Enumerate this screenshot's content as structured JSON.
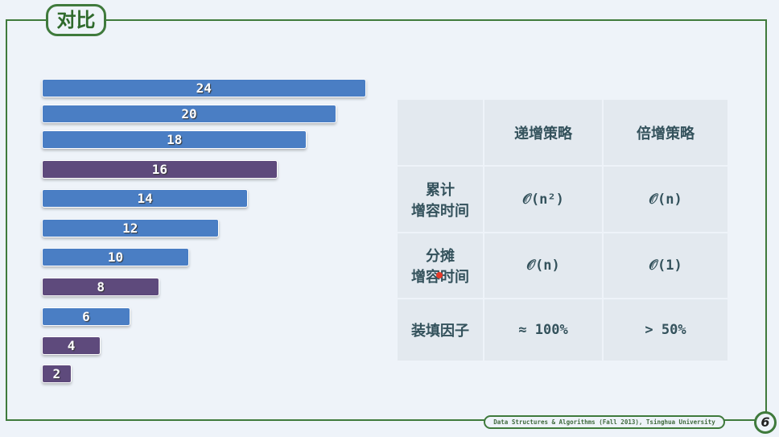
{
  "title": "对比",
  "chart_data": {
    "type": "bar",
    "orientation": "horizontal",
    "values": [
      24,
      20,
      18,
      16,
      14,
      12,
      10,
      8,
      6,
      4,
      2
    ],
    "highlighted": [
      false,
      false,
      false,
      true,
      false,
      false,
      false,
      true,
      false,
      true,
      true
    ],
    "colors": {
      "normal": "#4a7ec4",
      "highlight": "#5e4a7c"
    }
  },
  "table": {
    "headers": [
      "",
      "递增策略",
      "倍增策略"
    ],
    "rows": [
      {
        "label1": "累计",
        "label2": "增容时间",
        "inc": "𝒪(n²)",
        "dbl": "𝒪(n)"
      },
      {
        "label1": "分摊",
        "label2": "增容时间",
        "inc": "𝒪(n)",
        "dbl": "𝒪(1)"
      },
      {
        "label1": "装填因子",
        "label2": "",
        "inc": "≈ 100%",
        "dbl": "> 50%"
      }
    ]
  },
  "footer": "Data Structures & Algorithms (Fall 2013), Tsinghua University",
  "page": "6"
}
